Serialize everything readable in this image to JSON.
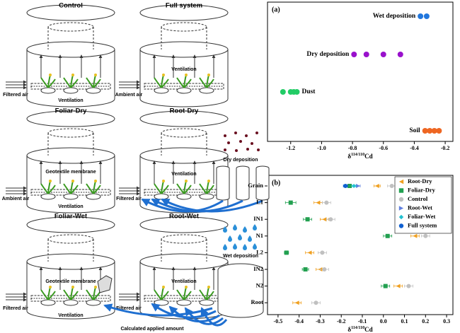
{
  "diagram": {
    "panels": [
      {
        "title": "Control",
        "labels": [
          "Filtered air",
          "Ventilation"
        ]
      },
      {
        "title": "Full system",
        "labels": [
          "Ventilation",
          "Ambient air"
        ]
      },
      {
        "title": "Foliar-Dry",
        "labels": [
          "Geotextile membrane",
          "Ambient air",
          "Ventilation"
        ]
      },
      {
        "title": "Root-Dry",
        "labels": [
          "Ventilation",
          "Filtered air"
        ]
      },
      {
        "title": "Foliar-Wet",
        "labels": [
          "Geotextile membrane",
          "Filtered air",
          "Ventilation"
        ]
      },
      {
        "title": "Root-Wet",
        "labels": [
          "Ventilation",
          "Filtered air"
        ]
      }
    ],
    "dry_deposition": "Dry deposition",
    "wet_deposition": "Wet deposition",
    "applied": "Calculated applied amount"
  },
  "chart_data": [
    {
      "type": "scatter",
      "title": "(a)",
      "x_label": [
        "δ",
        "114/110",
        "Cd"
      ],
      "xlim": [
        -1.35,
        -0.15
      ],
      "xticks": [
        -1.2,
        {
          "value": -1,
          "label": "-1.0"
        },
        -0.8,
        -0.6,
        -0.4,
        -0.2
      ],
      "series": [
        {
          "name": "Wet deposition",
          "color": "#2277dd",
          "x": [
            -0.36,
            -0.32
          ]
        },
        {
          "name": "Dry deposition",
          "color": "#9911cc",
          "x": [
            -0.79,
            -0.71,
            -0.6,
            -0.49
          ]
        },
        {
          "name": "Dust",
          "color": "#22cc66",
          "x": [
            -1.25,
            -1.2,
            -1.18,
            -1.16
          ]
        },
        {
          "name": "Soil",
          "color": "#ee6622",
          "x": [
            -0.33,
            -0.3,
            -0.27,
            -0.24
          ]
        }
      ]
    },
    {
      "type": "dot",
      "title": "(b)",
      "x_label": [
        "δ",
        "114/110",
        "Cd"
      ],
      "xlim": [
        -0.55,
        0.33
      ],
      "xticks": [
        -0.5,
        -0.4,
        -0.3,
        -0.2,
        -0.1,
        {
          "value": 0,
          "label": "0.0"
        },
        0.1,
        0.2,
        0.3
      ],
      "categories": [
        "Grain",
        "L1",
        "IN1",
        "N1",
        "L2",
        "IN2",
        "N2",
        "Root"
      ],
      "legend": "upper right",
      "series": [
        {
          "name": "Root-Dry",
          "color": "#f0a020",
          "marker": "triangle-left",
          "values": [
            -0.03,
            -0.31,
            -0.28,
            0.15,
            -0.35,
            -0.3,
            0.07,
            -0.41
          ],
          "errors": [
            0.015,
            0.02,
            0.02,
            0.02,
            0.02,
            0.02,
            0.02,
            0.02
          ]
        },
        {
          "name": "Foliar-Dry",
          "color": "#22a050",
          "marker": "square",
          "values": [
            -0.16,
            -0.44,
            -0.36,
            0.02,
            -0.46,
            -0.37,
            0.01,
            null
          ],
          "errors": [
            0.01,
            0.025,
            0.02,
            0.02,
            0.01,
            0.015,
            0.02,
            null
          ]
        },
        {
          "name": "Control",
          "color": "#c0c0c0",
          "marker": "circle",
          "values": [
            0.04,
            -0.27,
            -0.25,
            0.2,
            -0.29,
            -0.28,
            0.12,
            -0.32
          ],
          "errors": [
            0.02,
            0.02,
            0.02,
            0.02,
            0.02,
            0.02,
            0.02,
            0.02
          ]
        },
        {
          "name": "Root-Wet",
          "color": "#6080e0",
          "marker": "triangle-right",
          "values": [
            -0.12,
            null,
            null,
            null,
            null,
            null,
            null,
            null
          ],
          "errors": [
            0.01,
            null,
            null,
            null,
            null,
            null,
            null,
            null
          ]
        },
        {
          "name": "Foliar-Wet",
          "color": "#20c0d0",
          "marker": "diamond",
          "values": [
            -0.14,
            null,
            null,
            null,
            null,
            null,
            null,
            null
          ],
          "errors": [
            0.01,
            null,
            null,
            null,
            null,
            null,
            null,
            null
          ]
        },
        {
          "name": "Full system",
          "color": "#1060d0",
          "marker": "circle",
          "values": [
            -0.18,
            null,
            null,
            null,
            null,
            null,
            null,
            null
          ],
          "errors": [
            0.01,
            null,
            null,
            null,
            null,
            null,
            null,
            null
          ]
        }
      ]
    }
  ]
}
